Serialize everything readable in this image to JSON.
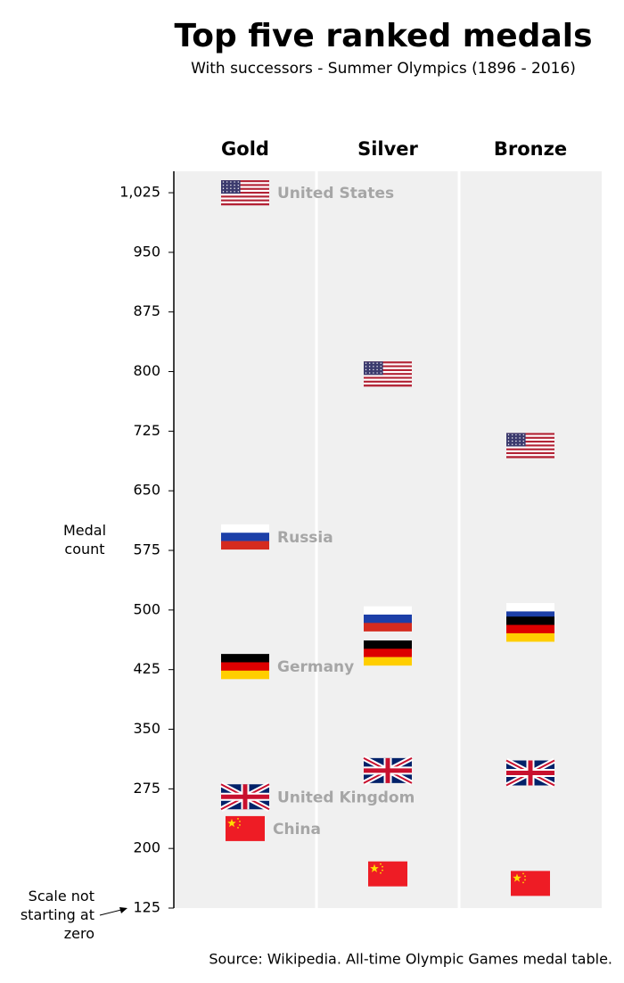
{
  "chart_data": {
    "type": "flag-dot",
    "title": "Top five ranked medals",
    "subtitle": "With successors - Summer Olympics (1896 - 2016)",
    "y_label": "Medal count",
    "annotation": "Scale not starting at zero",
    "source": "Source: Wikipedia. All-time Olympic Games medal table.",
    "categories": [
      "Gold",
      "Silver",
      "Bronze"
    ],
    "series": [
      {
        "name": "United States",
        "values": [
          1025,
          797,
          707
        ]
      },
      {
        "name": "Russia",
        "values": [
          592,
          489,
          493
        ]
      },
      {
        "name": "Germany",
        "values": [
          429,
          446,
          476
        ]
      },
      {
        "name": "United Kingdom",
        "values": [
          265,
          298,
          295
        ]
      },
      {
        "name": "China",
        "values": [
          225,
          168,
          156
        ]
      }
    ],
    "ylim": [
      125,
      1052
    ],
    "yticks": [
      125,
      200,
      275,
      350,
      425,
      500,
      575,
      650,
      725,
      800,
      875,
      950,
      {
        "value": 1025,
        "label": "1,025"
      }
    ],
    "background_color": "#f0f0f0",
    "label_color": "#a6a6a6"
  }
}
